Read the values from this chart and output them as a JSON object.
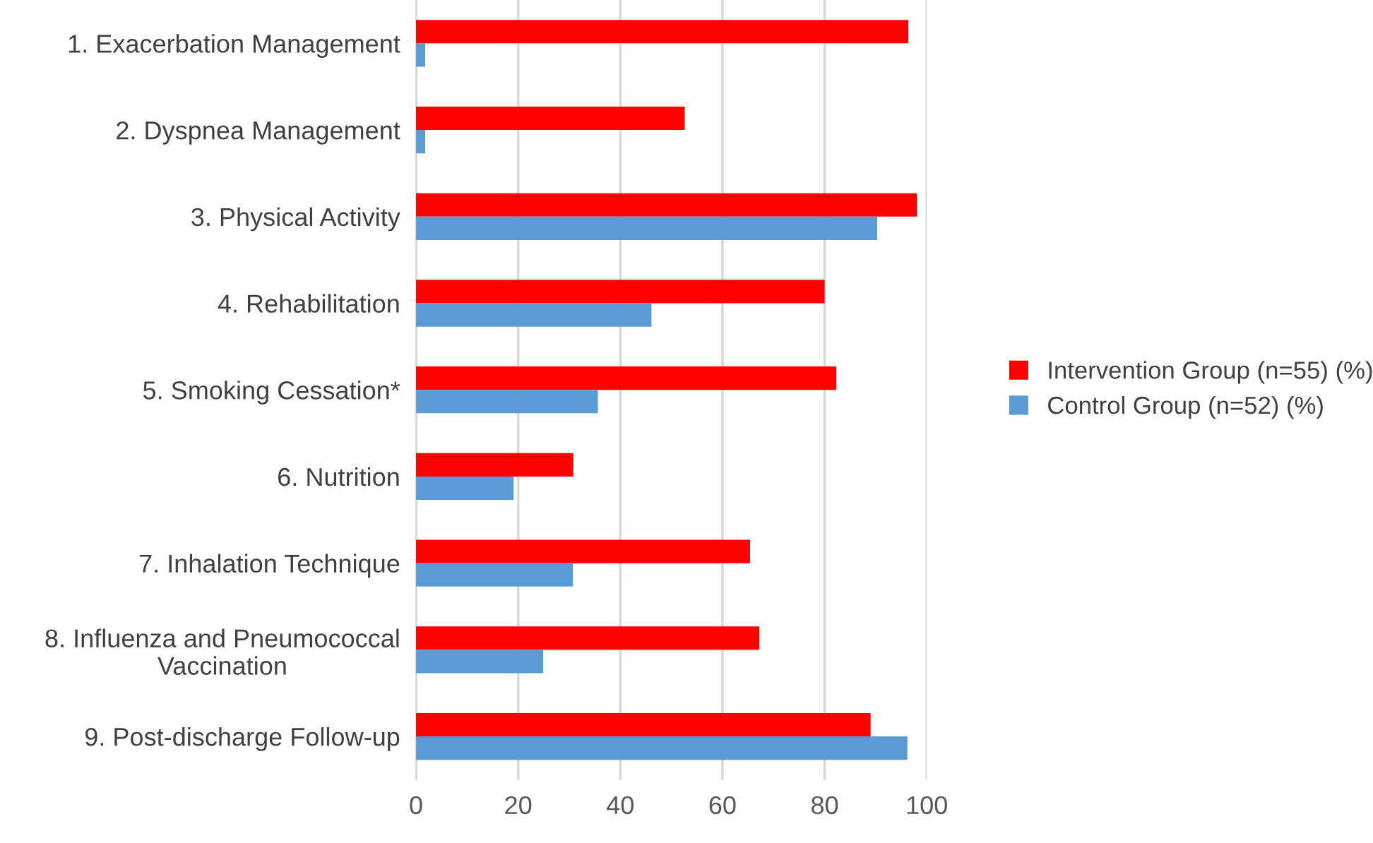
{
  "chart_data": {
    "type": "bar",
    "orientation": "horizontal",
    "categories": [
      "1. Exacerbation Management",
      "2. Dyspnea Management",
      "3. Physical Activity",
      "4. Rehabilitation",
      "5. Smoking Cessation*",
      "6. Nutrition",
      "7. Inhalation Technique",
      "8. Influenza and Pneumococcal\nVaccination",
      "9. Post-discharge Follow-up"
    ],
    "series": [
      {
        "name": "Intervention Group (n=55) (%)",
        "color": "#ff0000",
        "values": [
          96.4,
          52.6,
          98.1,
          80.0,
          82.3,
          30.8,
          65.4,
          67.2,
          89.0
        ]
      },
      {
        "name": "Control Group (n=52) (%)",
        "color": "#5b9bd5",
        "values": [
          1.8,
          1.8,
          90.3,
          46.1,
          35.6,
          19.1,
          30.7,
          24.9,
          96.2
        ]
      }
    ],
    "xlim": [
      0,
      100
    ],
    "xticks": [
      0,
      20,
      40,
      60,
      80,
      100
    ],
    "grid": "x",
    "legend": "right"
  }
}
